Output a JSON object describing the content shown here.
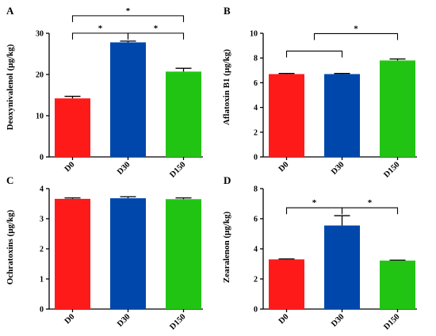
{
  "chart_data": [
    {
      "panel": "A",
      "type": "bar",
      "ylabel": "Deoxynivalenol (μg/kg)",
      "categories": [
        "D0",
        "D30",
        "D150"
      ],
      "values": [
        14.2,
        27.8,
        20.7
      ],
      "errors": [
        0.5,
        0.3,
        0.8
      ],
      "colors": [
        "#ff1a1a",
        "#0047ab",
        "#22c414"
      ],
      "ylim": [
        0,
        30
      ],
      "yticks": [
        0,
        10,
        20,
        30
      ],
      "significance": [
        {
          "from": 0,
          "to": 1,
          "label": "*",
          "level": 0
        },
        {
          "from": 1,
          "to": 2,
          "label": "*",
          "level": 0
        },
        {
          "from": 0,
          "to": 2,
          "label": "*",
          "level": 1
        }
      ]
    },
    {
      "panel": "B",
      "type": "bar",
      "ylabel": "Aflatoxin B1 (μg/kg)",
      "categories": [
        "D0",
        "D30",
        "D150"
      ],
      "values": [
        6.7,
        6.7,
        7.8
      ],
      "errors": [
        0.05,
        0.05,
        0.12
      ],
      "colors": [
        "#ff1a1a",
        "#0047ab",
        "#22c414"
      ],
      "ylim": [
        0,
        10
      ],
      "yticks": [
        0,
        2,
        4,
        6,
        8,
        10
      ],
      "significance": [
        {
          "from": 0,
          "to": 1,
          "label": "",
          "level": 0
        },
        {
          "from": "mid01",
          "to": 2,
          "label": "*",
          "level": 1
        }
      ]
    },
    {
      "panel": "C",
      "type": "bar",
      "ylabel": "Ochratoxins (μg/kg)",
      "categories": [
        "D0",
        "D30",
        "D150"
      ],
      "values": [
        3.66,
        3.68,
        3.65
      ],
      "errors": [
        0.03,
        0.05,
        0.04
      ],
      "colors": [
        "#ff1a1a",
        "#0047ab",
        "#22c414"
      ],
      "ylim": [
        0,
        4
      ],
      "yticks": [
        0,
        1,
        2,
        3,
        4
      ],
      "significance": []
    },
    {
      "panel": "D",
      "type": "bar",
      "ylabel": "Zearalenon (μg/kg)",
      "categories": [
        "D0",
        "D30",
        "D150"
      ],
      "values": [
        3.3,
        5.55,
        3.22
      ],
      "errors": [
        0.03,
        0.65,
        0.03
      ],
      "colors": [
        "#ff1a1a",
        "#0047ab",
        "#22c414"
      ],
      "ylim": [
        0,
        8
      ],
      "yticks": [
        0,
        2,
        4,
        6,
        8
      ],
      "significance": [
        {
          "from": 0,
          "to": 1,
          "label": "*",
          "level": 0
        },
        {
          "from": 1,
          "to": 2,
          "label": "*",
          "level": 0
        }
      ]
    }
  ]
}
